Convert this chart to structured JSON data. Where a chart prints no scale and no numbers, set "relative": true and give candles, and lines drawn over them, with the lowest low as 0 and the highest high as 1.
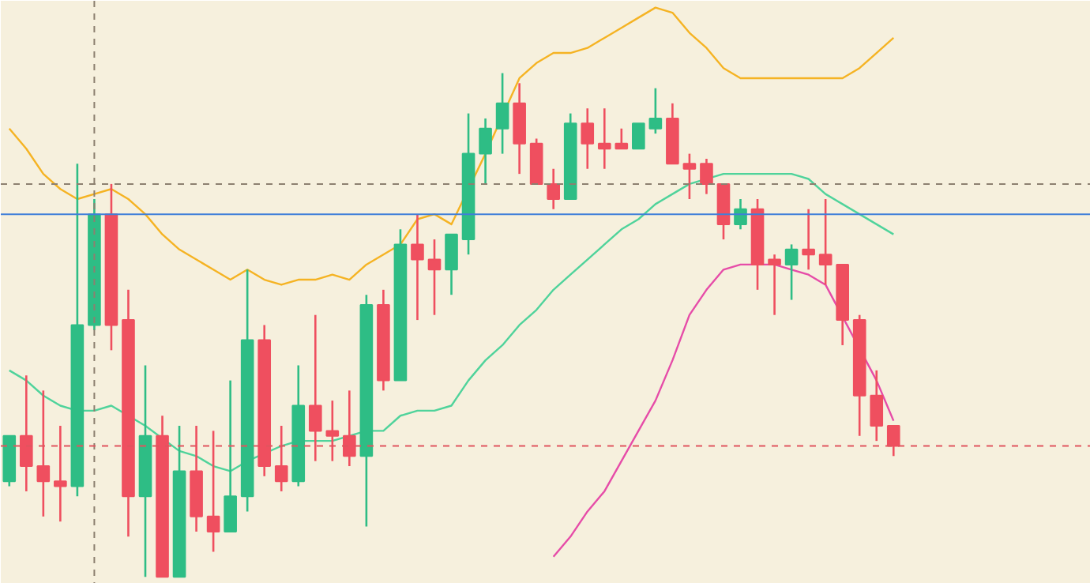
{
  "chart_data": {
    "type": "candlestick",
    "relative": true,
    "grid": false,
    "categories": [
      null,
      null,
      null,
      null,
      null,
      null,
      null,
      null,
      null,
      null,
      null,
      null,
      null,
      null,
      null,
      null,
      null,
      null,
      null,
      null,
      null,
      null,
      null,
      null,
      null,
      null,
      null,
      null,
      null,
      null,
      null,
      null,
      null,
      null,
      null,
      null,
      null,
      null,
      null,
      null,
      null,
      null,
      null,
      null,
      null,
      null,
      null,
      null,
      null,
      null,
      null,
      null,
      null
    ],
    "ohlc": [
      [
        0.19,
        0.28,
        0.18,
        0.28
      ],
      [
        0.28,
        0.4,
        0.17,
        0.22
      ],
      [
        0.22,
        0.37,
        0.12,
        0.19
      ],
      [
        0.19,
        0.3,
        0.11,
        0.18
      ],
      [
        0.18,
        0.82,
        0.16,
        0.5
      ],
      [
        0.5,
        0.75,
        0.49,
        0.72
      ],
      [
        0.72,
        0.78,
        0.45,
        0.5
      ],
      [
        0.51,
        0.57,
        0.08,
        0.16
      ],
      [
        0.16,
        0.42,
        0,
        0.28
      ],
      [
        0.28,
        0.32,
        0,
        0
      ],
      [
        0,
        0.3,
        0,
        0.21
      ],
      [
        0.21,
        0.3,
        0.09,
        0.12
      ],
      [
        0.12,
        0.29,
        0.05,
        0.09
      ],
      [
        0.09,
        0.39,
        0.09,
        0.16
      ],
      [
        0.16,
        0.61,
        0.13,
        0.47
      ],
      [
        0.47,
        0.5,
        0.2,
        0.22
      ],
      [
        0.22,
        0.3,
        0.17,
        0.19
      ],
      [
        0.19,
        0.42,
        0.18,
        0.34
      ],
      [
        0.34,
        0.52,
        0.23,
        0.29
      ],
      [
        0.29,
        0.35,
        0.23,
        0.28
      ],
      [
        0.28,
        0.37,
        0.22,
        0.24
      ],
      [
        0.24,
        0.56,
        0.1,
        0.54
      ],
      [
        0.54,
        0.57,
        0.37,
        0.39
      ],
      [
        0.39,
        0.69,
        0.39,
        0.66
      ],
      [
        0.66,
        0.72,
        0.51,
        0.63
      ],
      [
        0.63,
        0.67,
        0.52,
        0.61
      ],
      [
        0.61,
        0.68,
        0.56,
        0.68
      ],
      [
        0.67,
        0.92,
        0.64,
        0.84
      ],
      [
        0.84,
        0.91,
        0.78,
        0.89
      ],
      [
        0.89,
        1,
        0.84,
        0.94
      ],
      [
        0.94,
        0.98,
        0.8,
        0.86
      ],
      [
        0.86,
        0.87,
        0.78,
        0.78
      ],
      [
        0.78,
        0.81,
        0.73,
        0.75
      ],
      [
        0.75,
        0.92,
        0.75,
        0.9
      ],
      [
        0.9,
        0.93,
        0.81,
        0.86
      ],
      [
        0.86,
        0.93,
        0.81,
        0.85
      ],
      [
        0.86,
        0.89,
        0.85,
        0.85
      ],
      [
        0.85,
        0.9,
        0.85,
        0.9
      ],
      [
        0.89,
        0.97,
        0.88,
        0.91
      ],
      [
        0.91,
        0.94,
        0.82,
        0.82
      ],
      [
        0.82,
        0.84,
        0.75,
        0.81
      ],
      [
        0.82,
        0.83,
        0.76,
        0.78
      ],
      [
        0.78,
        0.78,
        0.67,
        0.7
      ],
      [
        0.7,
        0.75,
        0.69,
        0.73
      ],
      [
        0.73,
        0.75,
        0.57,
        0.62
      ],
      [
        0.63,
        0.64,
        0.52,
        0.62
      ],
      [
        0.62,
        0.66,
        0.55,
        0.65
      ],
      [
        0.65,
        0.73,
        0.61,
        0.64
      ],
      [
        0.64,
        0.75,
        0.58,
        0.62
      ],
      [
        0.62,
        0.62,
        0.46,
        0.51
      ],
      [
        0.51,
        0.52,
        0.28,
        0.36
      ],
      [
        0.36,
        0.41,
        0.27,
        0.3
      ],
      [
        0.3,
        0.3,
        0.24,
        0.26
      ]
    ],
    "colors": [
      "#2ebd85",
      "#ef4f5f",
      "#ef4f5f",
      "#ef4f5f",
      "#2ebd85",
      "#2ebd85",
      "#ef4f5f",
      "#ef4f5f",
      "#2ebd85",
      "#ef4f5f",
      "#2ebd85",
      "#ef4f5f",
      "#ef4f5f",
      "#2ebd85",
      "#2ebd85",
      "#ef4f5f",
      "#ef4f5f",
      "#2ebd85",
      "#ef4f5f",
      "#ef4f5f",
      "#ef4f5f",
      "#2ebd85",
      "#ef4f5f",
      "#2ebd85",
      "#ef4f5f",
      "#ef4f5f",
      "#2ebd85",
      "#2ebd85",
      "#2ebd85",
      "#2ebd85",
      "#ef4f5f",
      "#ef4f5f",
      "#ef4f5f",
      "#2ebd85",
      "#ef4f5f",
      "#ef4f5f",
      "#ef4f5f",
      "#2ebd85",
      "#2ebd85",
      "#ef4f5f",
      "#ef4f5f",
      "#ef4f5f",
      "#ef4f5f",
      "#2ebd85",
      "#ef4f5f",
      "#ef4f5f",
      "#2ebd85",
      "#ef4f5f",
      "#ef4f5f",
      "#ef4f5f",
      "#ef4f5f",
      "#ef4f5f",
      "#ef4f5f"
    ],
    "series": [
      {
        "type": "line",
        "color": "#f5b323",
        "values": [
          0.89,
          0.85,
          0.8,
          0.77,
          0.75,
          0.76,
          0.77,
          0.75,
          0.72,
          0.68,
          0.65,
          0.63,
          0.61,
          0.59,
          0.61,
          0.59,
          0.58,
          0.59,
          0.59,
          0.6,
          0.59,
          0.62,
          0.64,
          0.66,
          0.71,
          0.72,
          0.7,
          null,
          0.84,
          null,
          0.99,
          1.02,
          1.04,
          1.04,
          1.05,
          1.07,
          1.09,
          1.11,
          1.13,
          1.12,
          1.08,
          1.05,
          1.01,
          0.99,
          0.99,
          0.99,
          0.99,
          0.99,
          0.99,
          0.99,
          1.01,
          1.04,
          1.07
        ]
      },
      {
        "type": "line",
        "color": "#4fd39b",
        "values": [
          0.41,
          0.39,
          0.36,
          0.34,
          0.33,
          0.33,
          0.34,
          null,
          0.3,
          null,
          0.25,
          0.24,
          0.22,
          0.21,
          0.23,
          null,
          0.26,
          0.27,
          0.27,
          0.27,
          null,
          0.29,
          0.29,
          0.32,
          0.33,
          0.33,
          0.34,
          0.39,
          0.43,
          0.46,
          0.5,
          0.53,
          0.57,
          0.6,
          0.63,
          0.66,
          0.69,
          0.71,
          0.74,
          0.76,
          0.78,
          null,
          0.8,
          0.8,
          0.8,
          0.8,
          0.8,
          0.79,
          0.76,
          0.74,
          0.72,
          0.7,
          0.68
        ]
      },
      {
        "type": "line",
        "color": "#e64ca8",
        "values": [
          null,
          null,
          null,
          null,
          null,
          null,
          null,
          null,
          null,
          null,
          null,
          null,
          null,
          null,
          null,
          null,
          null,
          null,
          null,
          null,
          null,
          null,
          null,
          null,
          null,
          null,
          null,
          null,
          null,
          null,
          null,
          null,
          0.04,
          0.08,
          0.13,
          0.17,
          0.23,
          0.29,
          0.35,
          0.43,
          0.52,
          0.57,
          0.61,
          0.62,
          0.62,
          0.62,
          0.61,
          0.6,
          0.58,
          null,
          null,
          0.39,
          0.31
        ]
      }
    ],
    "ref_lines": [
      {
        "axis": "y",
        "value": 0.78,
        "color": "#8c8070",
        "line_style": "dashed"
      },
      {
        "axis": "y",
        "value": 0.72,
        "color": "#3f7fd9",
        "line_style": "solid"
      },
      {
        "axis": "y",
        "value": 0.26,
        "color": "#e0555f",
        "line_style": "dashed"
      }
    ]
  }
}
